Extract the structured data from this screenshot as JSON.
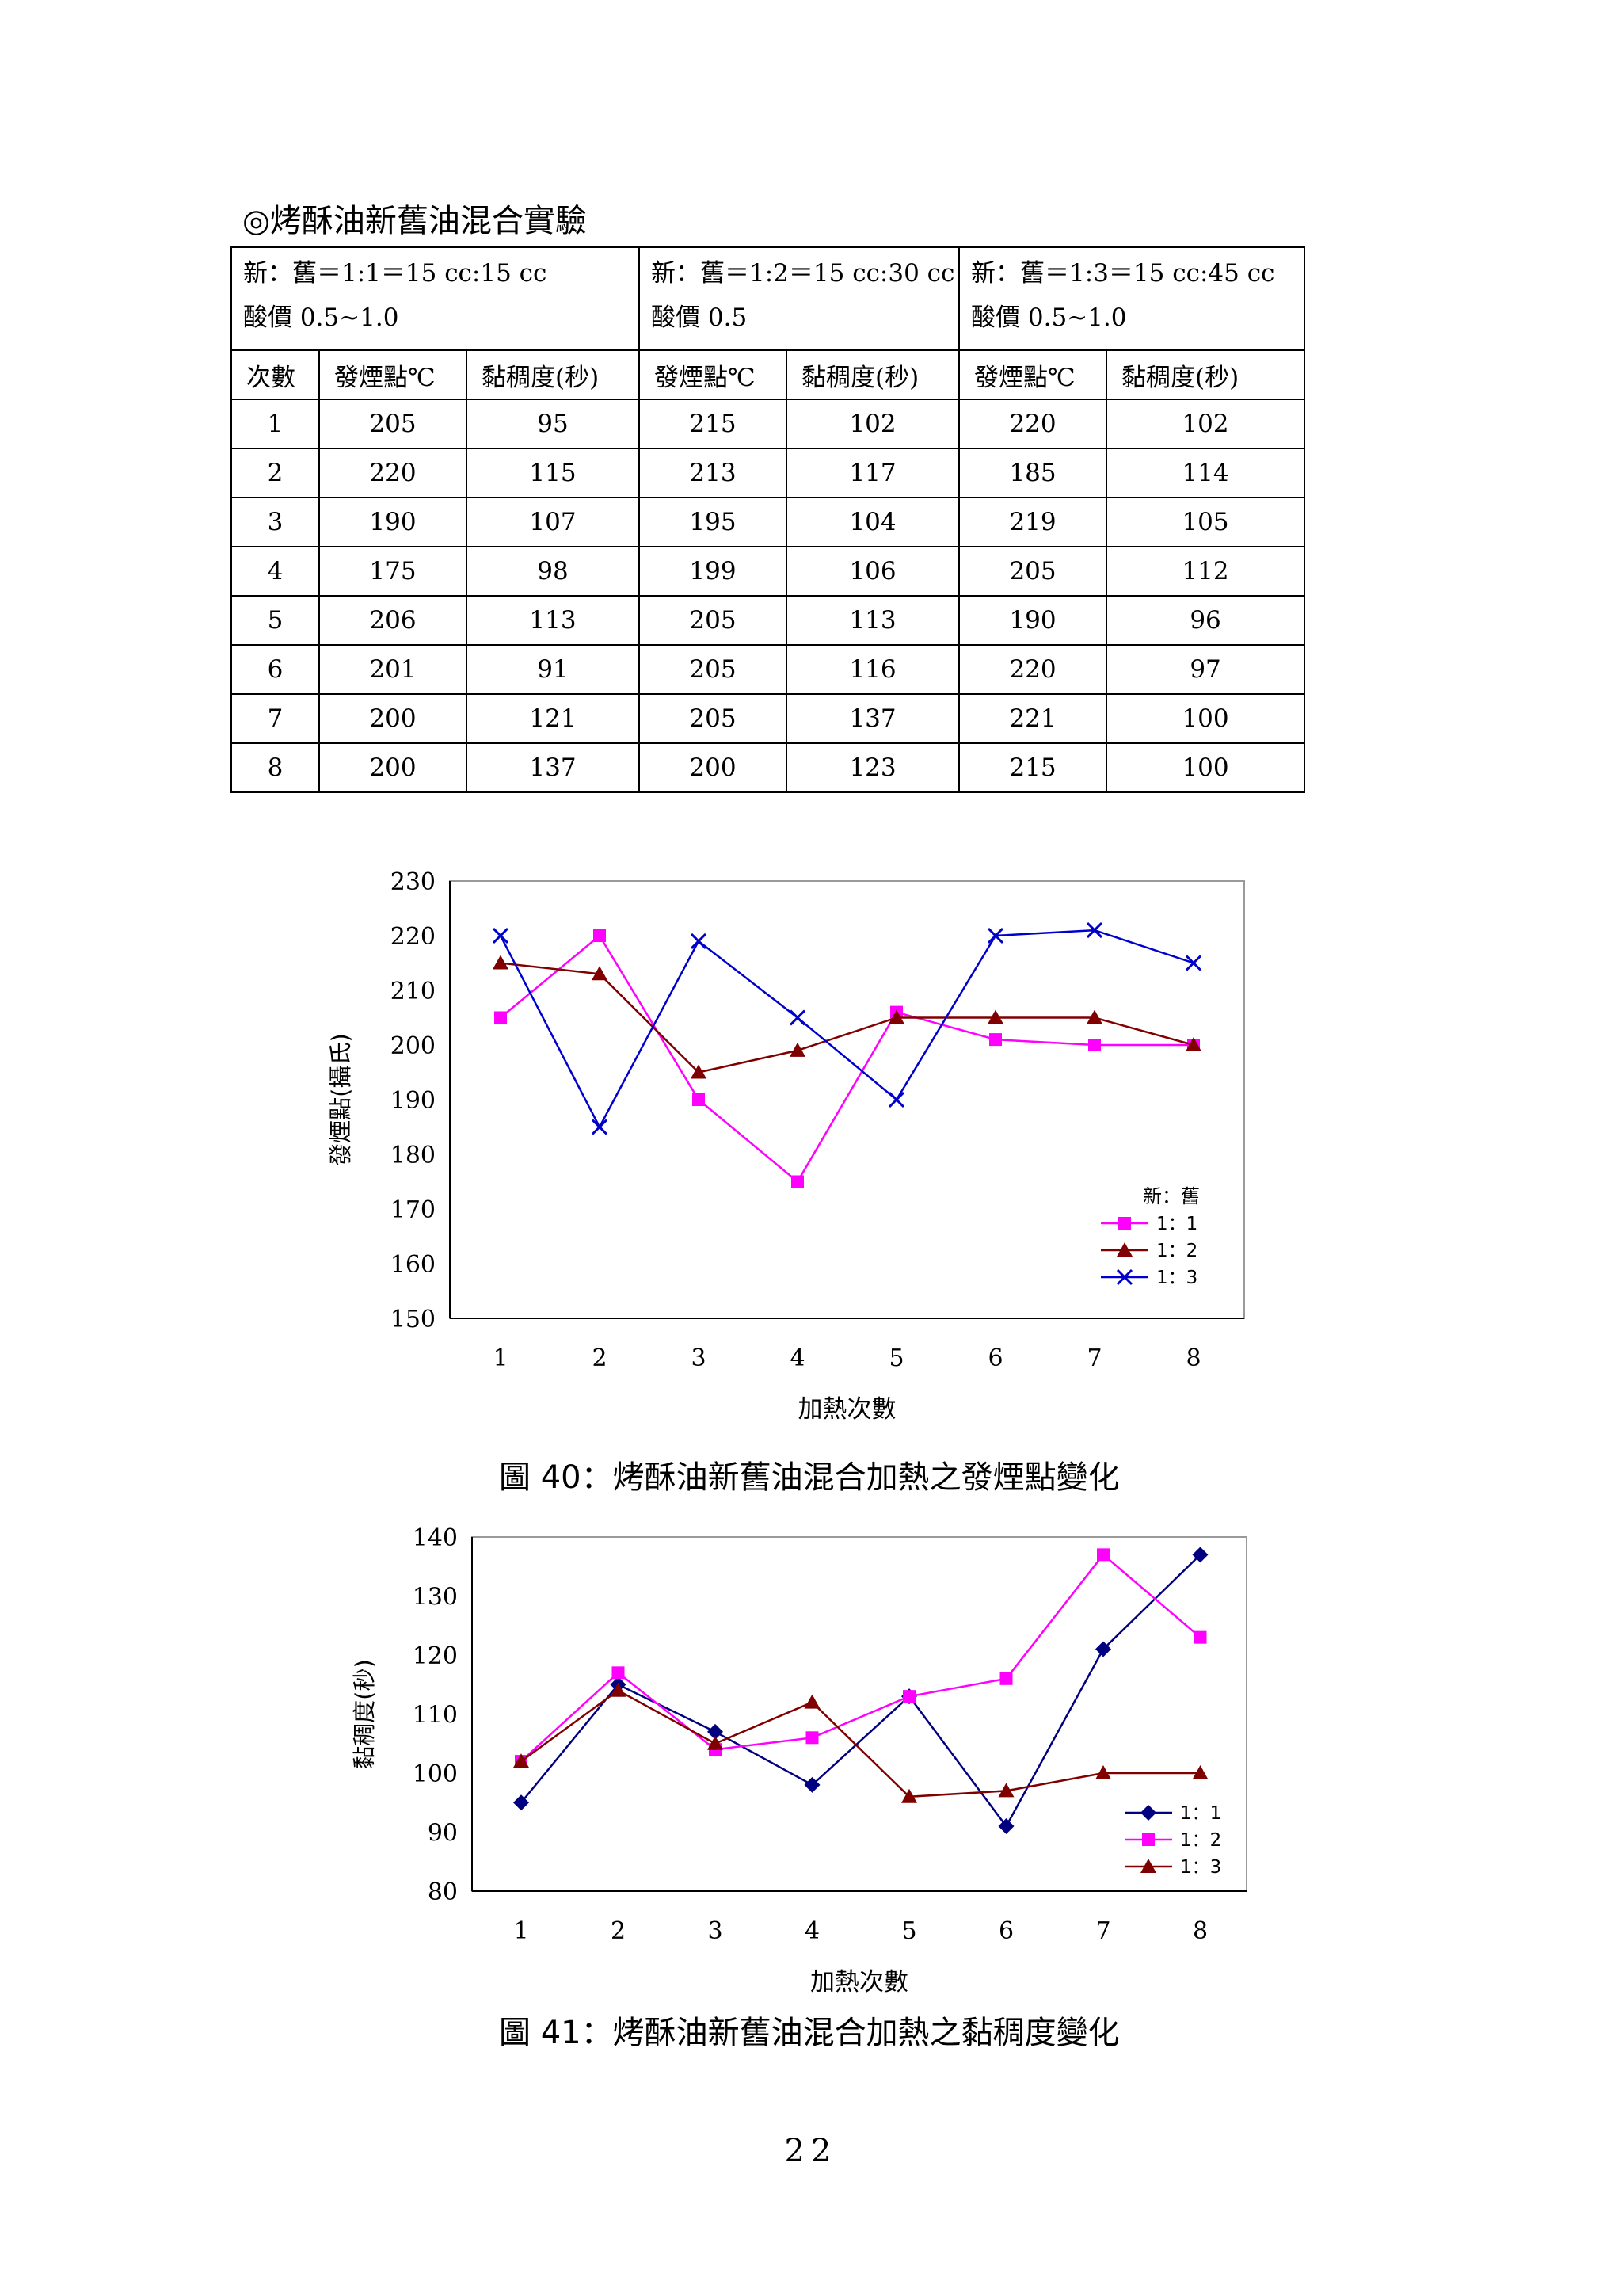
{
  "heading": "◎烤酥油新舊油混合實驗",
  "table": {
    "groups": [
      {
        "ratio": "新：舊＝1:1＝15 cc:15 cc",
        "acid": "酸價 0.5~1.0"
      },
      {
        "ratio": "新：舊＝1:2＝15 cc:30 cc",
        "acid": "酸價 0.5"
      },
      {
        "ratio": "新：舊＝1:3＝15 cc:45 cc",
        "acid": "酸價 0.5~1.0"
      }
    ],
    "col_headers": [
      "次數",
      "發煙點℃",
      "黏稠度(秒)",
      "發煙點℃",
      "黏稠度(秒)",
      "發煙點℃",
      "黏稠度(秒)"
    ],
    "rows": [
      [
        "1",
        "205",
        "95",
        "215",
        "102",
        "220",
        "102"
      ],
      [
        "2",
        "220",
        "115",
        "213",
        "117",
        "185",
        "114"
      ],
      [
        "3",
        "190",
        "107",
        "195",
        "104",
        "219",
        "105"
      ],
      [
        "4",
        "175",
        "98",
        "199",
        "106",
        "205",
        "112"
      ],
      [
        "5",
        "206",
        "113",
        "205",
        "113",
        "190",
        "96"
      ],
      [
        "6",
        "201",
        "91",
        "205",
        "116",
        "220",
        "97"
      ],
      [
        "7",
        "200",
        "121",
        "205",
        "137",
        "221",
        "100"
      ],
      [
        "8",
        "200",
        "137",
        "200",
        "123",
        "215",
        "100"
      ]
    ]
  },
  "chart_data": [
    {
      "type": "line",
      "title": "",
      "xlabel": "加熱次數",
      "ylabel": "發煙點(攝氏)",
      "x": [
        1,
        2,
        3,
        4,
        5,
        6,
        7,
        8
      ],
      "ylim": [
        150,
        230
      ],
      "yticks": [
        150,
        160,
        170,
        180,
        190,
        200,
        210,
        220,
        230
      ],
      "grid": false,
      "legend_position": "bottom-right",
      "legend_title": "新：舊",
      "series": [
        {
          "name": "1：1",
          "values": [
            205,
            220,
            190,
            175,
            206,
            201,
            200,
            200
          ],
          "color": "#ff00ff",
          "marker": "square"
        },
        {
          "name": "1：2",
          "values": [
            215,
            213,
            195,
            199,
            205,
            205,
            205,
            200
          ],
          "color": "#800000",
          "marker": "triangle"
        },
        {
          "name": "1：3",
          "values": [
            220,
            185,
            219,
            205,
            190,
            220,
            221,
            215
          ],
          "color": "#0000cc",
          "marker": "x"
        }
      ]
    },
    {
      "type": "line",
      "title": "",
      "xlabel": "加熱次數",
      "ylabel": "黏稠度(秒)",
      "x": [
        1,
        2,
        3,
        4,
        5,
        6,
        7,
        8
      ],
      "ylim": [
        80,
        140
      ],
      "yticks": [
        80,
        90,
        100,
        110,
        120,
        130,
        140
      ],
      "grid": false,
      "legend_position": "bottom-right",
      "legend_title": "",
      "series": [
        {
          "name": "1：1",
          "values": [
            95,
            115,
            107,
            98,
            113,
            91,
            121,
            137
          ],
          "color": "#000080",
          "marker": "diamond"
        },
        {
          "name": "1：2",
          "values": [
            102,
            117,
            104,
            106,
            113,
            116,
            137,
            123
          ],
          "color": "#ff00ff",
          "marker": "square"
        },
        {
          "name": "1：3",
          "values": [
            102,
            114,
            105,
            112,
            96,
            97,
            100,
            100
          ],
          "color": "#800000",
          "marker": "triangle"
        }
      ]
    }
  ],
  "captions": {
    "fig40": "圖 40：烤酥油新舊油混合加熱之發煙點變化",
    "fig41": "圖 41：烤酥油新舊油混合加熱之黏稠度變化"
  },
  "page_number": "22"
}
